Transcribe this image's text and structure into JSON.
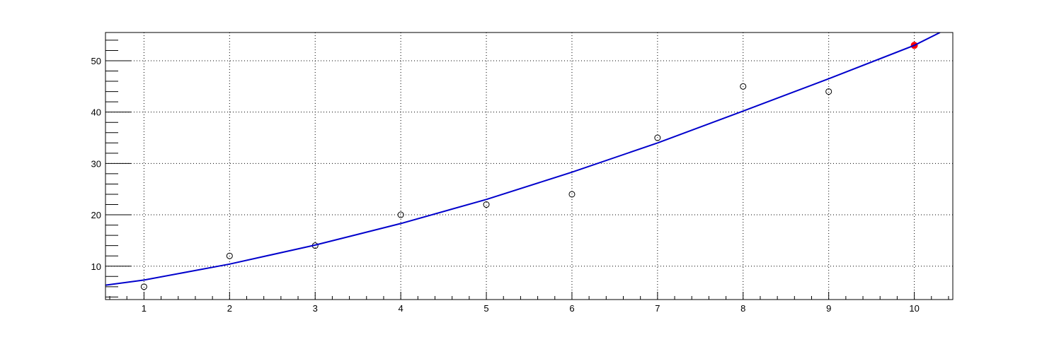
{
  "chart_data": {
    "type": "scatter",
    "title": "",
    "xlabel": "",
    "ylabel": "",
    "xlim": [
      0.55,
      10.45
    ],
    "ylim": [
      3.5,
      55.5
    ],
    "grid": true,
    "x_ticks": [
      "1",
      "2",
      "3",
      "4",
      "5",
      "6",
      "7",
      "8",
      "9",
      "10"
    ],
    "y_ticks": [
      "10",
      "20",
      "30",
      "40",
      "50"
    ],
    "series": [
      {
        "marker": "open-circle",
        "color": "#000000",
        "x": [
          1,
          2,
          3,
          4,
          5,
          6,
          7,
          8,
          9
        ],
        "y": [
          6,
          12,
          14,
          20,
          22,
          24,
          35,
          45,
          44
        ]
      },
      {
        "marker": "filled-circle",
        "color": "#ff0000",
        "x": [
          10
        ],
        "y": [
          53
        ]
      },
      {
        "marker": "line",
        "color": "#0000cc",
        "x": [
          0.55,
          1,
          2,
          3,
          4,
          5,
          6,
          7,
          8,
          9,
          10,
          10.3
        ],
        "y": [
          6.3,
          7.3,
          10.4,
          14.1,
          18.3,
          23.0,
          28.3,
          34.0,
          40.2,
          46.5,
          53.0,
          55.5
        ]
      }
    ]
  }
}
